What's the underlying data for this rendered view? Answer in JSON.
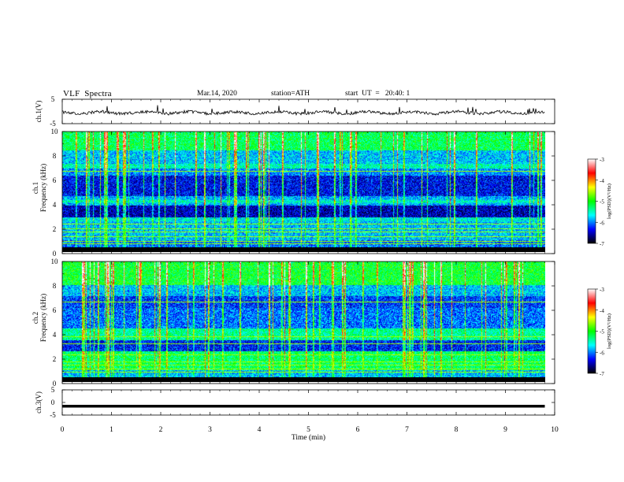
{
  "header": {
    "title": "VLF  Spectra",
    "date": "Mar.14, 2020",
    "station": "station=ATH",
    "start": "start  UT  =   20:40: 1"
  },
  "colors": {
    "signal_trace": "#000000",
    "colormap": [
      "#000000",
      "#0000ff",
      "#00ffff",
      "#00ff00",
      "#ffff00",
      "#ff0000",
      "#ffffff"
    ]
  },
  "chart_data": [
    {
      "type": "line",
      "name": "ch1-waveform",
      "ylabel": "ch.1(V)",
      "ylim": [
        -5,
        5
      ],
      "yticks": [
        "5",
        "-5"
      ],
      "xlim": [
        0,
        10
      ],
      "series": [
        {
          "description_values": "noisy trace around -0.5 V",
          "level": -0.5,
          "noise": 0.6
        }
      ]
    },
    {
      "type": "heatmap",
      "name": "ch1-spectrogram",
      "ylabel": "ch.1\nFrequency  (kHz)",
      "ylim": [
        0,
        10
      ],
      "yticks": [
        "0",
        "2",
        "4",
        "6",
        "8",
        "10"
      ],
      "xlim": [
        0,
        10
      ],
      "data_end_min": 9.8,
      "colorbar": {
        "label": "log(PSD)(V²/Hz)",
        "range": [
          -7,
          -3
        ],
        "ticks": [
          "-3",
          "-4",
          "-5",
          "-6",
          "-7"
        ]
      }
    },
    {
      "type": "heatmap",
      "name": "ch2-spectrogram",
      "ylabel": "ch.2\nFrequency  (kHz)",
      "ylim": [
        0,
        10
      ],
      "yticks": [
        "0",
        "2",
        "4",
        "6",
        "8",
        "10"
      ],
      "xlim": [
        0,
        10
      ],
      "data_end_min": 9.8,
      "colorbar": {
        "label": "log(PSD)(V²/Hz)",
        "range": [
          -7,
          -3
        ],
        "ticks": [
          "-3",
          "-4",
          "-5",
          "-6",
          "-7"
        ]
      }
    },
    {
      "type": "line",
      "name": "ch3-waveform",
      "ylabel": "ch.3(V)",
      "ylim": [
        -5,
        5
      ],
      "yticks": [
        "5",
        "0",
        "-5"
      ],
      "xlim": [
        0,
        10
      ],
      "series": [
        {
          "level": -1.5
        }
      ]
    }
  ],
  "xaxis": {
    "label": "Time  (min)",
    "ticks": [
      "0",
      "1",
      "2",
      "3",
      "4",
      "5",
      "6",
      "7",
      "8",
      "9",
      "10"
    ]
  }
}
